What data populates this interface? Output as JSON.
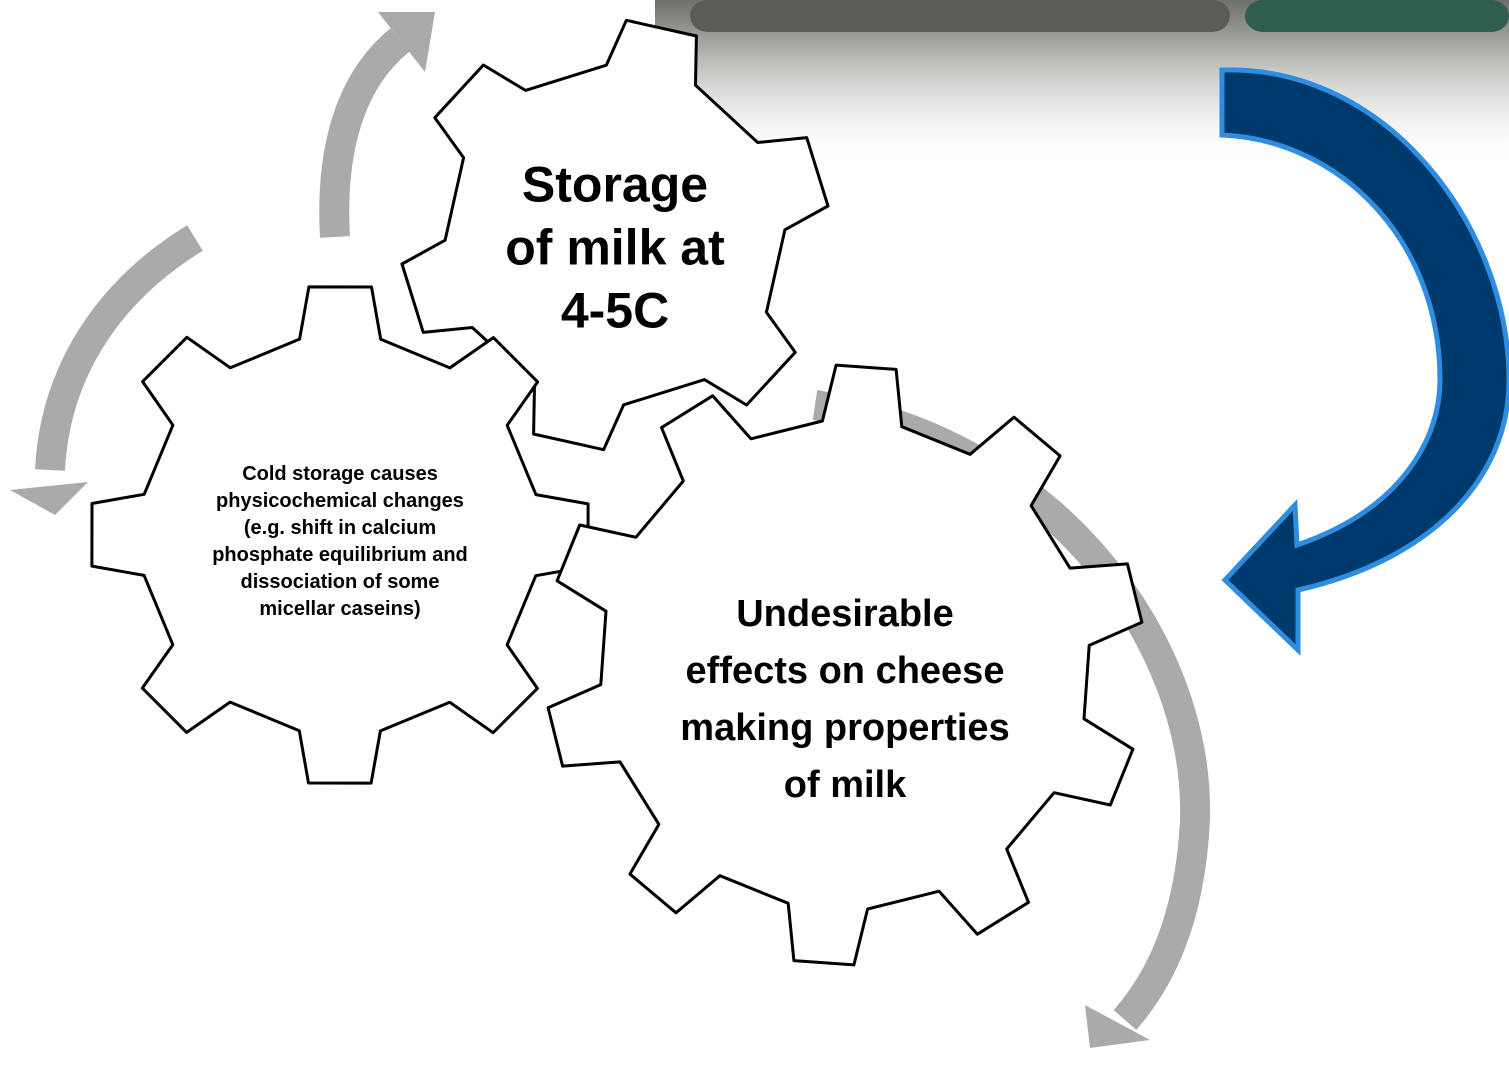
{
  "gears": [
    {
      "label": "Storage of milk at 4-5C"
    },
    {
      "label": "Cold storage causes physicochemical changes (e.g. shift in calcium phosphate equilibrium and dissociation of some micellar caseins)"
    },
    {
      "label": "Undesirable effects on cheese making properties of milk"
    }
  ]
}
